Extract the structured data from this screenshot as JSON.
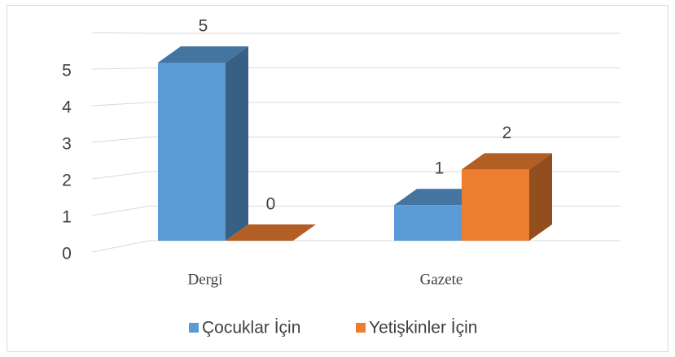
{
  "chart_data": {
    "type": "bar3d",
    "categories": [
      "Dergi",
      "Gazete"
    ],
    "series": [
      {
        "name": "Çocuklar İçin",
        "color": "#5b9bd5",
        "values": [
          5,
          1
        ]
      },
      {
        "name": "Yetişkinler İçin",
        "color": "#ed7d31",
        "values": [
          0,
          2
        ]
      }
    ],
    "ylim": [
      0,
      6
    ],
    "yticks": [
      0,
      1,
      2,
      3,
      4,
      5
    ],
    "grid": true,
    "legend": "bottom"
  }
}
